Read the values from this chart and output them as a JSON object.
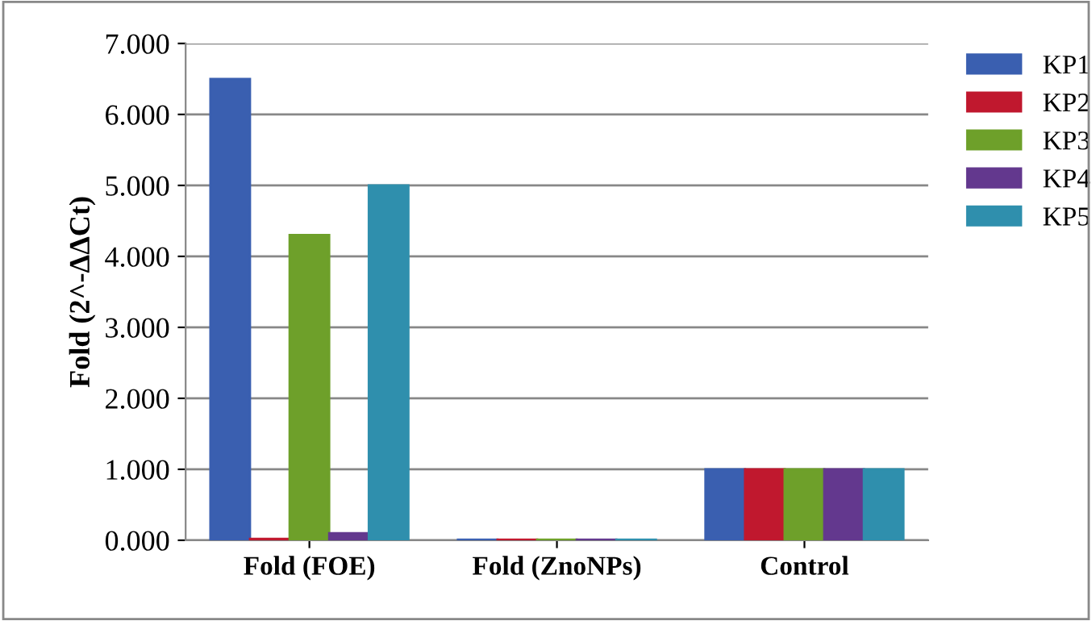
{
  "chart_data": {
    "type": "bar",
    "ylabel": "Fold (2^-ΔΔCt)",
    "categories": [
      "Fold (FOE)",
      "Fold (ZnoNPs)",
      "Control"
    ],
    "series": [
      {
        "name": "KP1",
        "color": "#3a5fb0",
        "values": [
          6.5,
          0.01,
          1.0
        ]
      },
      {
        "name": "KP2",
        "color": "#c0182e",
        "values": [
          0.02,
          0.01,
          1.0
        ]
      },
      {
        "name": "KP3",
        "color": "#6ea02a",
        "values": [
          4.3,
          0.01,
          1.0
        ]
      },
      {
        "name": "KP4",
        "color": "#63388e",
        "values": [
          0.1,
          0.01,
          1.0
        ]
      },
      {
        "name": "KP5",
        "color": "#2f8fad",
        "values": [
          5.0,
          0.01,
          1.0
        ]
      }
    ],
    "ylim": [
      0,
      7
    ],
    "yticks": [
      {
        "value": 0,
        "label": "0.000"
      },
      {
        "value": 1,
        "label": "1.000"
      },
      {
        "value": 2,
        "label": "2.000"
      },
      {
        "value": 3,
        "label": "3.000"
      },
      {
        "value": 4,
        "label": "4.000"
      },
      {
        "value": 5,
        "label": "5.000"
      },
      {
        "value": 6,
        "label": "6.000"
      },
      {
        "value": 7,
        "label": "7.000"
      }
    ],
    "grid": "y",
    "legend": "right"
  }
}
